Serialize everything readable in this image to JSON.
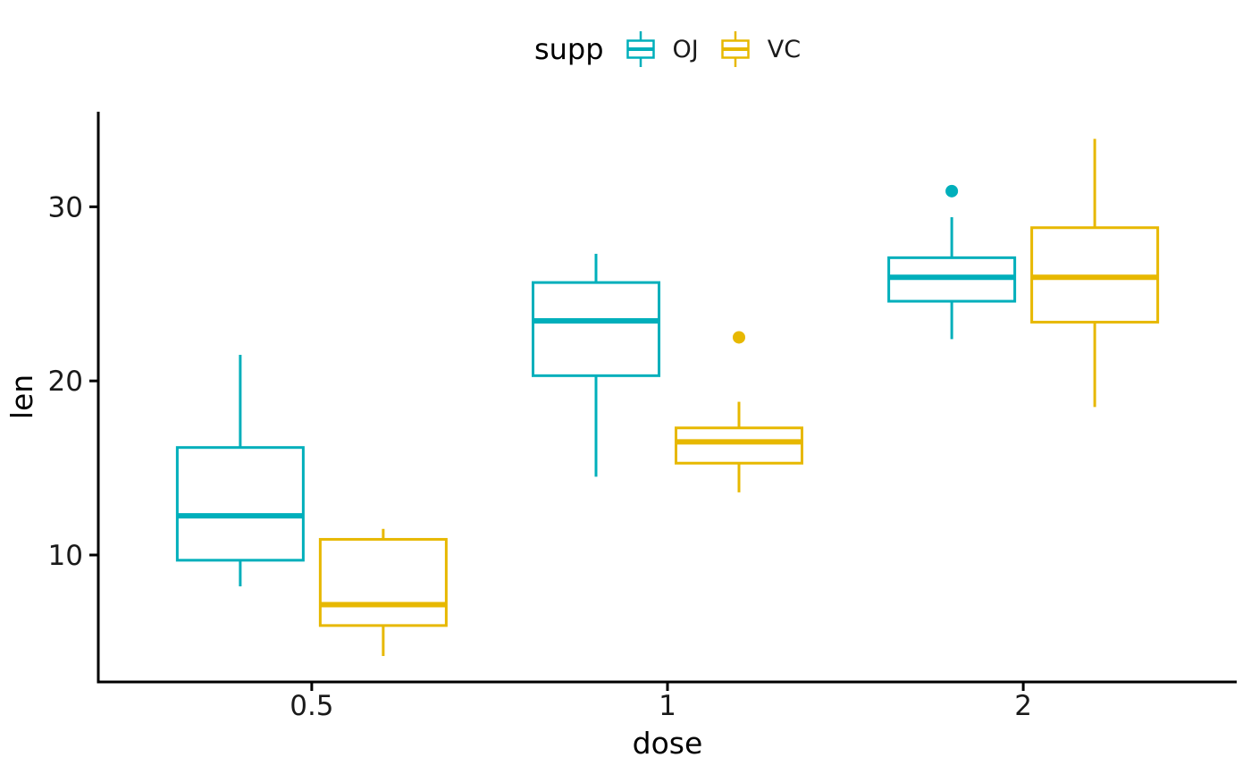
{
  "chart_data": {
    "type": "boxplot",
    "title": "",
    "xlabel": "dose",
    "ylabel": "len",
    "legend_title": "supp",
    "legend_position": "top",
    "grid": false,
    "background": "#ffffff",
    "axis_color": "#000000",
    "tick_text_color": "#1a1a1a",
    "categories": [
      "0.5",
      "1",
      "2"
    ],
    "y_ticks": [
      "10",
      "20",
      "30"
    ],
    "y_tick_values": [
      10,
      20,
      30
    ],
    "ylim": [
      2.71,
      35.46
    ],
    "series": [
      {
        "name": "OJ",
        "color": "#00AFBB",
        "boxes": [
          {
            "category": "0.5",
            "whisker_low": 8.2,
            "q1": 9.7,
            "median": 12.25,
            "q3": 16.175,
            "whisker_high": 21.5,
            "outliers": []
          },
          {
            "category": "1",
            "whisker_low": 14.5,
            "q1": 20.3,
            "median": 23.45,
            "q3": 25.65,
            "whisker_high": 27.3,
            "outliers": []
          },
          {
            "category": "2",
            "whisker_low": 22.4,
            "q1": 24.575,
            "median": 25.95,
            "q3": 27.075,
            "whisker_high": 29.4,
            "outliers": [
              30.9
            ]
          }
        ]
      },
      {
        "name": "VC",
        "color": "#E7B800",
        "boxes": [
          {
            "category": "0.5",
            "whisker_low": 4.2,
            "q1": 5.95,
            "median": 7.15,
            "q3": 10.9,
            "whisker_high": 11.5,
            "outliers": []
          },
          {
            "category": "1",
            "whisker_low": 13.6,
            "q1": 15.275,
            "median": 16.5,
            "q3": 17.3,
            "whisker_high": 18.8,
            "outliers": [
              22.5
            ]
          },
          {
            "category": "2",
            "whisker_low": 18.5,
            "q1": 23.375,
            "median": 25.95,
            "q3": 28.8,
            "whisker_high": 33.9,
            "outliers": []
          }
        ]
      }
    ]
  }
}
